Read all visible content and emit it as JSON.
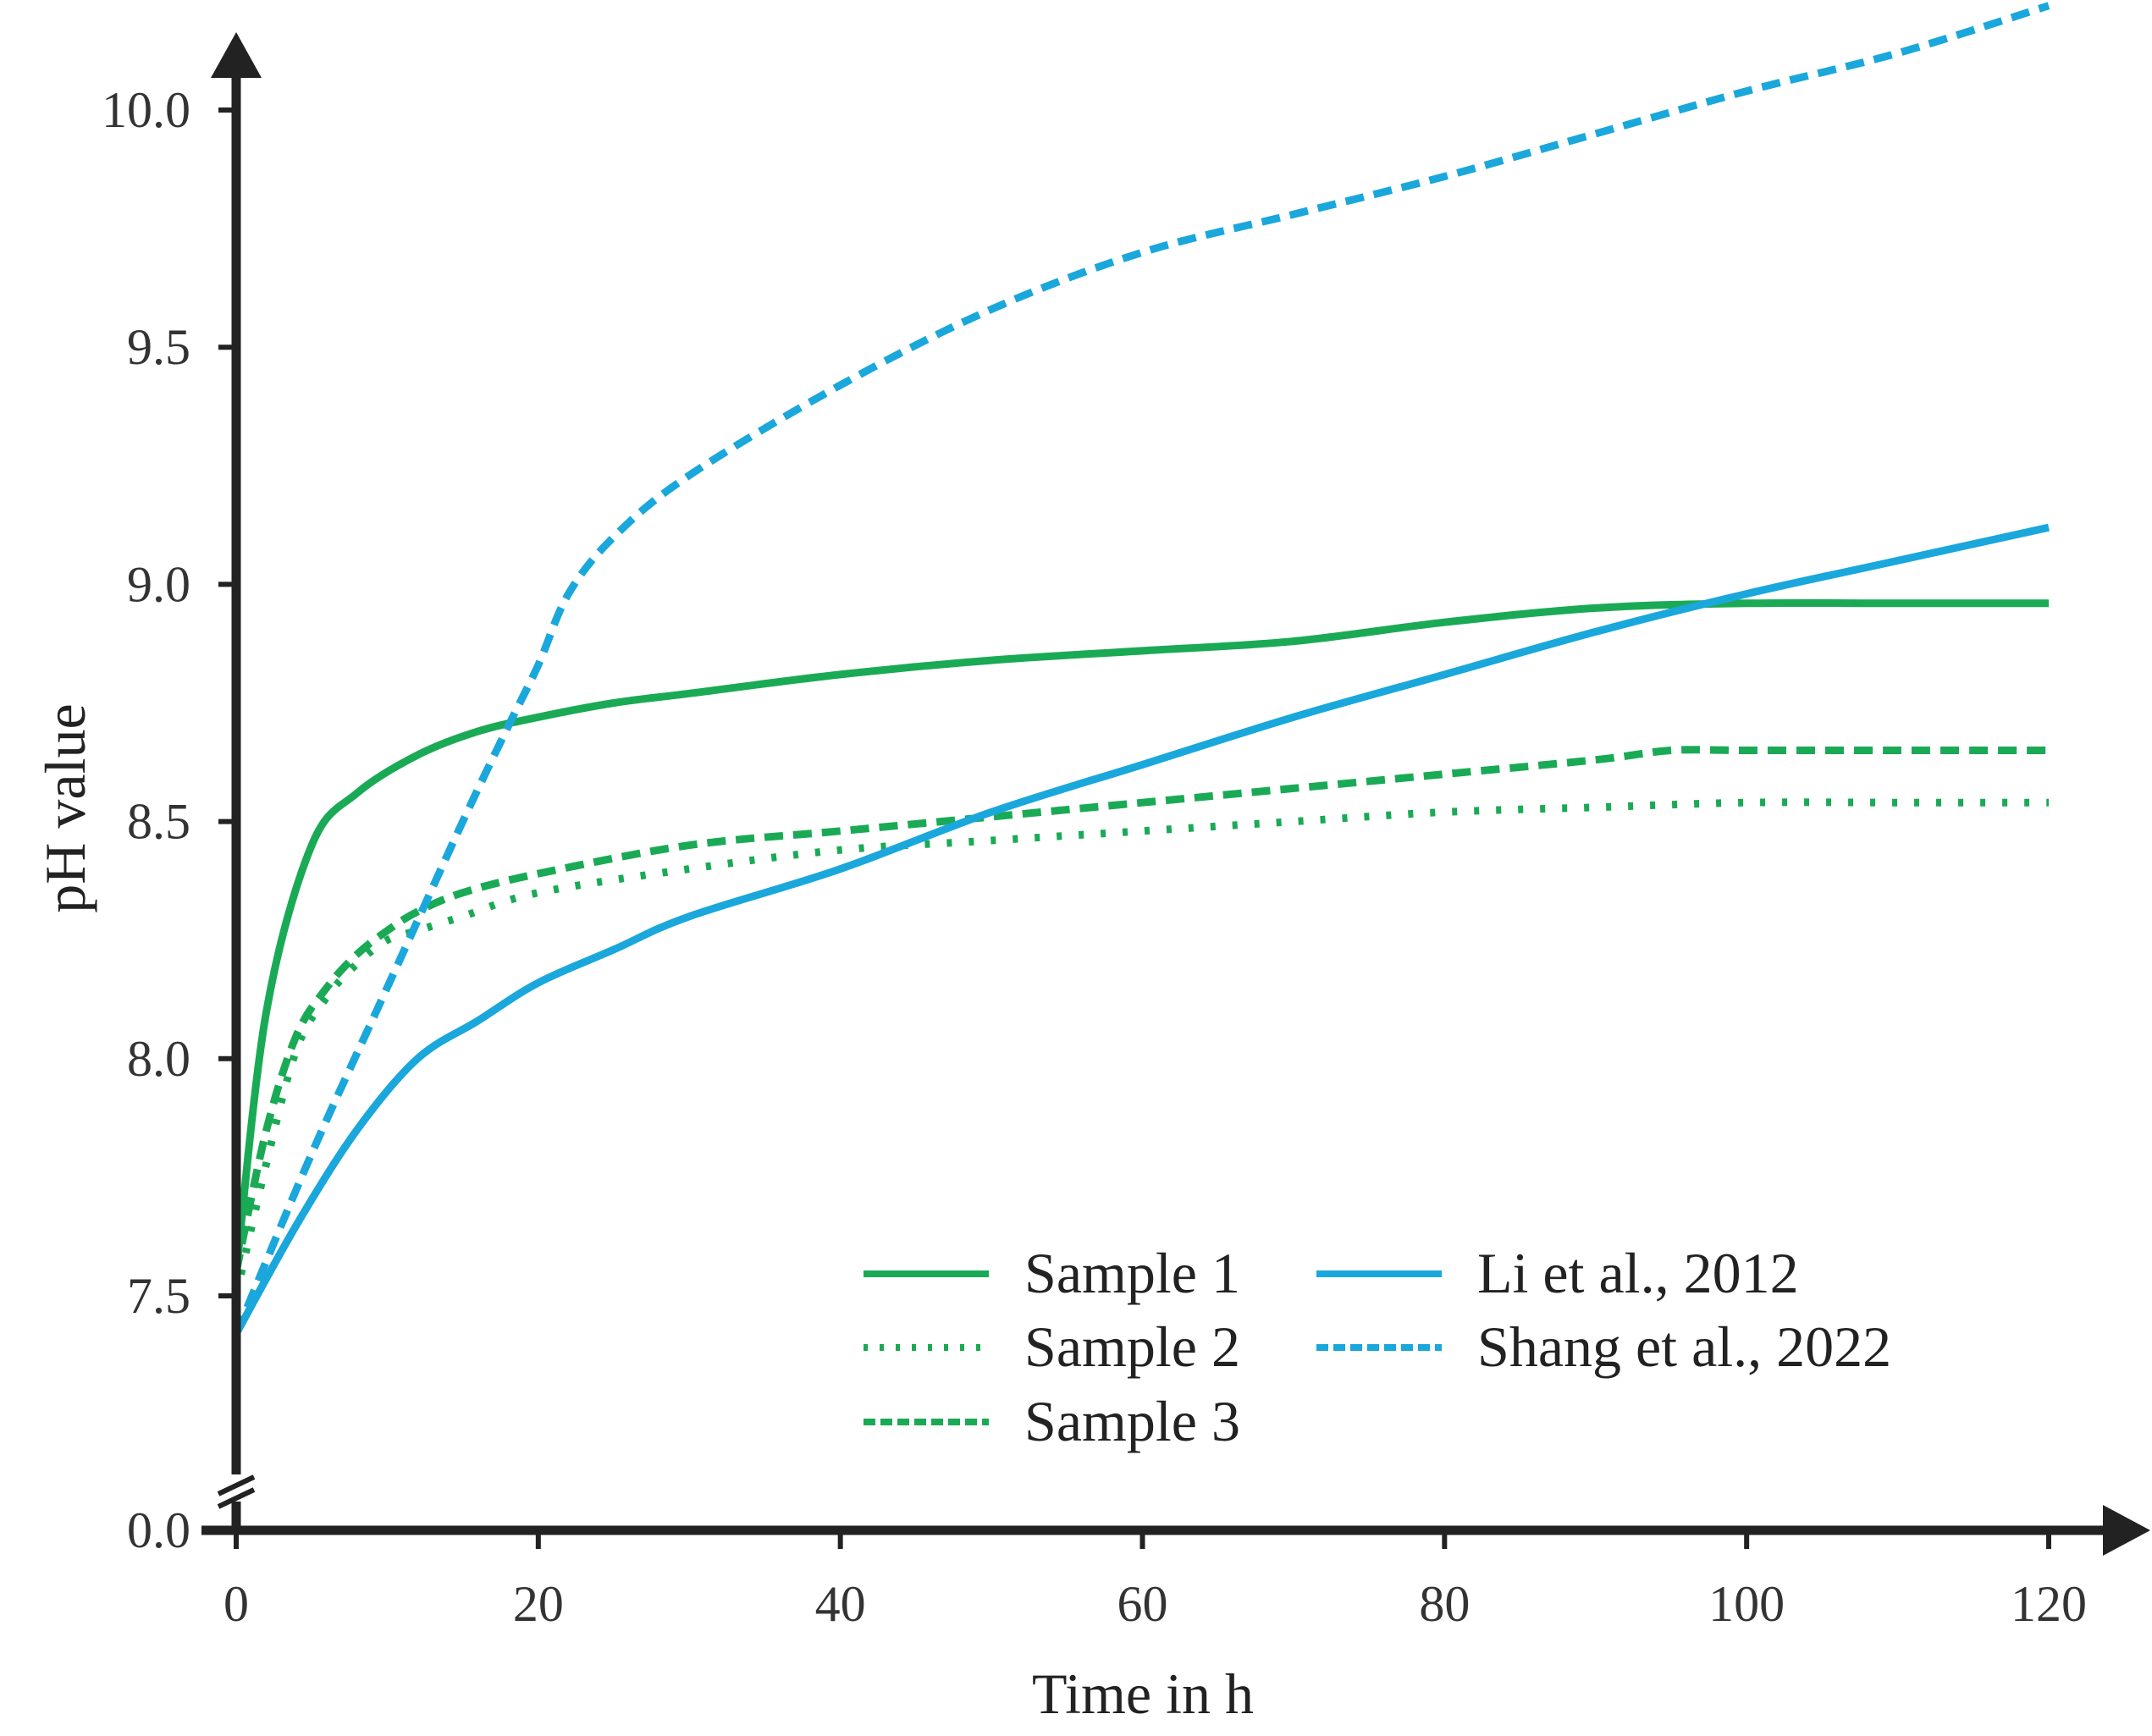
{
  "chart_data": {
    "type": "line",
    "title": "",
    "xlabel": "Time in h",
    "ylabel": "pH value",
    "xlim": [
      0,
      120
    ],
    "ylim": [
      7.2,
      10.2
    ],
    "axis_break": {
      "below": 7.5,
      "to_value": 0.0,
      "label": "0.0"
    },
    "x_ticks": [
      {
        "value": 0,
        "label": "0"
      },
      {
        "value": 20,
        "label": "20"
      },
      {
        "value": 40,
        "label": "40"
      },
      {
        "value": 60,
        "label": "60"
      },
      {
        "value": 80,
        "label": "80"
      },
      {
        "value": 100,
        "label": "100"
      },
      {
        "value": 120,
        "label": "120"
      }
    ],
    "y_ticks": [
      {
        "value": 7.5,
        "label": "7.5"
      },
      {
        "value": 8.0,
        "label": "8.0"
      },
      {
        "value": 8.5,
        "label": "8.5"
      },
      {
        "value": 9.0,
        "label": "9.0"
      },
      {
        "value": 9.5,
        "label": "9.5"
      },
      {
        "value": 10.0,
        "label": "10.0"
      }
    ],
    "grid": false,
    "legend_position": "bottom-right",
    "series": [
      {
        "name": "Sample 1",
        "color": "#1aaa55",
        "style": "solid",
        "x": [
          0,
          2,
          5,
          8,
          12,
          16,
          20,
          25,
          30,
          40,
          50,
          60,
          70,
          80,
          90,
          100,
          110,
          120
        ],
        "y": [
          7.55,
          8.1,
          8.45,
          8.56,
          8.64,
          8.69,
          8.72,
          8.75,
          8.77,
          8.81,
          8.84,
          8.86,
          8.88,
          8.92,
          8.95,
          8.96,
          8.96,
          8.96
        ]
      },
      {
        "name": "Sample 2",
        "color": "#1aaa55",
        "style": "dotted",
        "x": [
          0,
          2,
          4,
          6,
          8,
          10,
          12,
          15,
          20,
          30,
          40,
          50,
          60,
          70,
          80,
          90,
          100,
          110,
          120
        ],
        "y": [
          7.5,
          7.78,
          8.02,
          8.13,
          8.2,
          8.25,
          8.27,
          8.3,
          8.35,
          8.4,
          8.44,
          8.46,
          8.48,
          8.5,
          8.52,
          8.53,
          8.54,
          8.54,
          8.54
        ]
      },
      {
        "name": "Sample 3",
        "color": "#1aaa55",
        "style": "dashed",
        "x": [
          0,
          2,
          4,
          6,
          8,
          10,
          12,
          15,
          20,
          30,
          40,
          50,
          60,
          70,
          80,
          90,
          95,
          100,
          110,
          120
        ],
        "y": [
          7.55,
          7.85,
          8.05,
          8.15,
          8.22,
          8.27,
          8.31,
          8.35,
          8.39,
          8.45,
          8.48,
          8.51,
          8.54,
          8.57,
          8.6,
          8.63,
          8.65,
          8.65,
          8.65,
          8.65
        ]
      },
      {
        "name": "Li et al., 2012",
        "color": "#1aa7dc",
        "style": "solid",
        "x": [
          0,
          4,
          8,
          12,
          16,
          20,
          25,
          30,
          40,
          50,
          60,
          70,
          80,
          90,
          100,
          110,
          120
        ],
        "y": [
          7.42,
          7.65,
          7.85,
          8.0,
          8.08,
          8.16,
          8.23,
          8.3,
          8.4,
          8.52,
          8.62,
          8.72,
          8.81,
          8.9,
          8.98,
          9.05,
          9.12
        ]
      },
      {
        "name": "Shang et al., 2022",
        "color": "#1aa7dc",
        "style": "dashed",
        "x": [
          0,
          5,
          10,
          15,
          18,
          20,
          22,
          25,
          30,
          40,
          50,
          60,
          70,
          80,
          90,
          100,
          110,
          120
        ],
        "y": [
          7.42,
          7.8,
          8.15,
          8.5,
          8.7,
          8.83,
          8.98,
          9.1,
          9.23,
          9.42,
          9.58,
          9.7,
          9.78,
          9.86,
          9.95,
          10.04,
          10.12,
          10.22
        ]
      }
    ]
  }
}
